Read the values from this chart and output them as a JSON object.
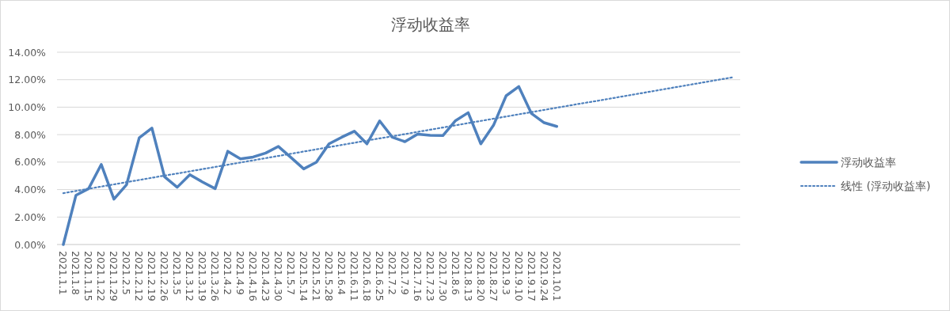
{
  "chart_data": {
    "type": "line",
    "title": "浮动收益率",
    "categories": [
      "2021.1.1",
      "2021.1.8",
      "2021.1.15",
      "2021.1.22",
      "2021.1.29",
      "2021.2.5",
      "2021.2.12",
      "2021.2.19",
      "2021.2.26",
      "2021.3.5",
      "2021.3.12",
      "2021.3.19",
      "2021.3.26",
      "2021.4.2",
      "2021.4.9",
      "2021.4.16",
      "2021.4.23",
      "2021.4.30",
      "2021.5.7",
      "2021.5.14",
      "2021.5.21",
      "2021.5.28",
      "2021.6.4",
      "2021.6.11",
      "2021.6.18",
      "2021.6.25",
      "2021.7.2",
      "2021.7.9",
      "2021.7.16",
      "2021.7.23",
      "2021.7.30",
      "2021.8.6",
      "2021.8.13",
      "2021.8.20",
      "2021.8.27",
      "2021.9.3",
      "2021.9.10",
      "2021.9.17",
      "2021.9.24",
      "2021.10.1",
      null,
      null,
      null,
      null,
      null,
      null,
      null,
      null,
      null,
      null,
      null,
      null,
      null,
      null
    ],
    "series": [
      {
        "name": "浮动收益率",
        "color": "#4f81bd",
        "line_style": "solid",
        "values": [
          0,
          3.59,
          4.07,
          5.83,
          3.3,
          4.36,
          7.77,
          8.48,
          4.93,
          4.17,
          5.09,
          4.55,
          4.07,
          6.79,
          6.24,
          6.37,
          6.66,
          7.14,
          6.33,
          5.51,
          5.99,
          7.33,
          7.81,
          8.25,
          7.33,
          9.0,
          7.81,
          7.49,
          8.04,
          7.95,
          7.93,
          9.02,
          9.6,
          7.33,
          8.68,
          10.83,
          11.5,
          9.54,
          8.87,
          8.6,
          null,
          null,
          null,
          null,
          null,
          null,
          null,
          null,
          null,
          null,
          null,
          null,
          null,
          null
        ]
      },
      {
        "name": "线性 (浮动收益率)",
        "color": "#4f81bd",
        "line_style": "dotted",
        "values": [
          3.74,
          3.9,
          4.06,
          4.22,
          4.38,
          4.54,
          4.7,
          4.86,
          5.02,
          5.17,
          5.33,
          5.49,
          5.65,
          5.81,
          5.97,
          6.13,
          6.29,
          6.45,
          6.61,
          6.77,
          6.93,
          7.09,
          7.25,
          7.41,
          7.57,
          7.73,
          7.88,
          8.04,
          8.2,
          8.36,
          8.52,
          8.68,
          8.84,
          9.0,
          9.16,
          9.32,
          9.48,
          9.64,
          9.8,
          9.96,
          10.12,
          10.28,
          10.43,
          10.59,
          10.75,
          10.91,
          11.07,
          11.23,
          11.39,
          11.55,
          11.71,
          11.87,
          12.03,
          12.19
        ]
      }
    ],
    "ylim": [
      0,
      14
    ],
    "yticks": [
      {
        "value": 0,
        "label": "0.00%"
      },
      {
        "value": 2,
        "label": "2.00%"
      },
      {
        "value": 4,
        "label": "4.00%"
      },
      {
        "value": 6,
        "label": "6.00%"
      },
      {
        "value": 8,
        "label": "8.00%"
      },
      {
        "value": 10,
        "label": "10.00%"
      },
      {
        "value": 12,
        "label": "12.00%"
      },
      {
        "value": 14,
        "label": "14.00%"
      }
    ],
    "grid": "y",
    "legend": "right",
    "marker": "none"
  }
}
